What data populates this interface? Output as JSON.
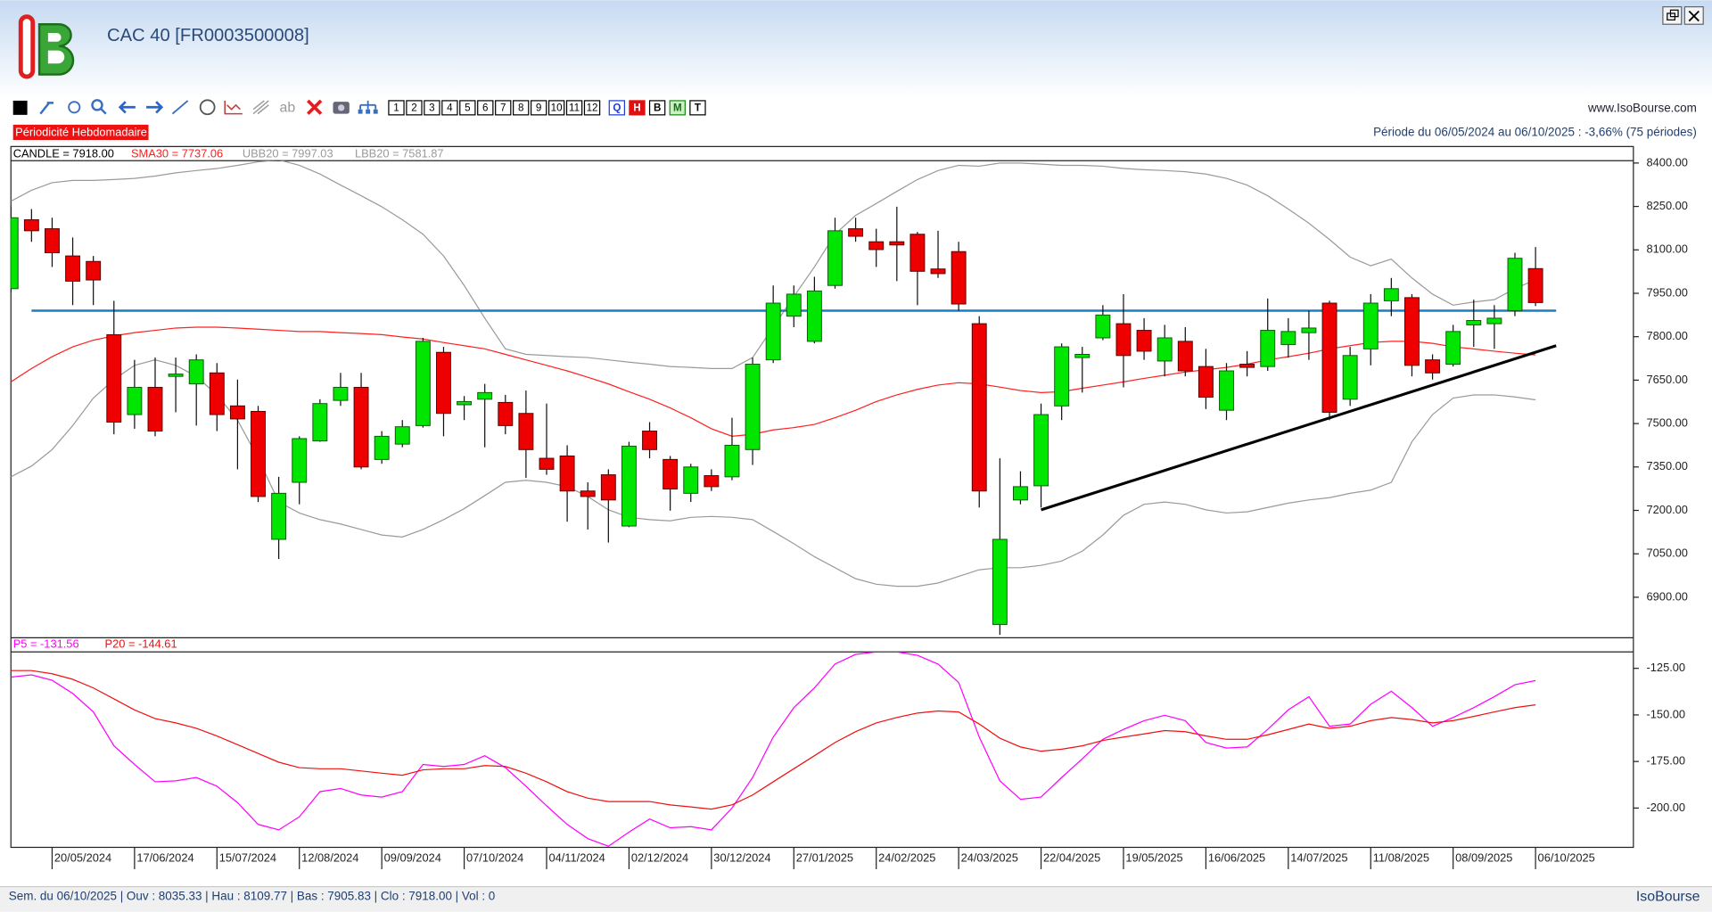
{
  "header": {
    "title": "CAC 40 [FR0003500008]",
    "website": "www.IsoBourse.com",
    "periodicity": "Périodicité Hebdomadaire",
    "period": "Période du 06/05/2024 au 06/10/2025 : -3,66% (75 périodes)",
    "toolbar_numbers": [
      "1",
      "2",
      "3",
      "4",
      "5",
      "6",
      "7",
      "8",
      "9",
      "10",
      "11",
      "12"
    ],
    "toolbar_letters": [
      "Q",
      "H",
      "B",
      "M",
      "T"
    ],
    "toolbar_text": "ab"
  },
  "chart_data": [
    {
      "type": "candlestick",
      "legend_label": "CANDLE = 7918.00",
      "categories": [
        null,
        null,
        "20/05/2024",
        null,
        null,
        null,
        "17/06/2024",
        null,
        null,
        null,
        "15/07/2024",
        null,
        null,
        null,
        "12/08/2024",
        null,
        null,
        null,
        "09/09/2024",
        null,
        null,
        null,
        "07/10/2024",
        null,
        null,
        null,
        "04/11/2024",
        null,
        null,
        null,
        "02/12/2024",
        null,
        null,
        null,
        "30/12/2024",
        null,
        null,
        null,
        "27/01/2025",
        null,
        null,
        null,
        "24/02/2025",
        null,
        null,
        null,
        "24/03/2025",
        null,
        null,
        null,
        "22/04/2025",
        null,
        null,
        null,
        "19/05/2025",
        null,
        null,
        null,
        "16/06/2025",
        null,
        null,
        null,
        "14/07/2025",
        null,
        null,
        null,
        "11/08/2025",
        null,
        null,
        null,
        "08/09/2025",
        null,
        null,
        null,
        "06/10/2025"
      ],
      "open": [
        7966,
        8204,
        8173,
        8079,
        8060,
        7807,
        7531,
        7625,
        7663,
        7637,
        7675,
        7561,
        7542,
        7100,
        7297,
        7440,
        7580,
        7625,
        7376,
        7429,
        7493,
        7746,
        7565,
        7584,
        7573,
        7535,
        7380,
        7388,
        7267,
        7323,
        7146,
        7474,
        7376,
        7259,
        7320,
        7316,
        7410,
        7720,
        7871,
        7784,
        7977,
        8173,
        8128,
        8128,
        8154,
        8034,
        8094,
        7845,
        6806,
        7236,
        7285,
        7561,
        7728,
        7796,
        7845,
        7822,
        7716,
        7784,
        7697,
        7546,
        7705,
        7697,
        7773,
        7814,
        7916,
        7584,
        7758,
        7924,
        7935,
        7720,
        7705,
        7841,
        7845,
        7890,
        8035.33
      ],
      "high": [
        8249,
        8241,
        8211,
        8143,
        8079,
        7924,
        7720,
        7728,
        7728,
        7739,
        7709,
        7652,
        7561,
        7316,
        7456,
        7584,
        7675,
        7675,
        7474,
        7512,
        7796,
        7765,
        7595,
        7637,
        7599,
        7614,
        7569,
        7425,
        7297,
        7342,
        7437,
        7505,
        7388,
        7361,
        7342,
        7520,
        7728,
        7977,
        7977,
        8007,
        8211,
        8211,
        8173,
        8249,
        8162,
        8166,
        8128,
        7871,
        7380,
        7335,
        7569,
        7777,
        7765,
        7909,
        7947,
        7864,
        7841,
        7833,
        7758,
        7709,
        7750,
        7932,
        7864,
        7890,
        7924,
        7765,
        7947,
        8003,
        7947,
        7739,
        7841,
        7928,
        7909,
        8090,
        8109.77
      ],
      "low": [
        7954,
        8128,
        8041,
        7909,
        7909,
        7463,
        7482,
        7456,
        7539,
        7493,
        7474,
        7342,
        7229,
        7032,
        7221,
        7437,
        7561,
        7342,
        7361,
        7418,
        7486,
        7456,
        7512,
        7418,
        7463,
        7312,
        7323,
        7161,
        7134,
        7089,
        7142,
        7380,
        7199,
        7229,
        7267,
        7304,
        7357,
        7709,
        7833,
        7777,
        7966,
        8128,
        8041,
        7992,
        7909,
        8003,
        7890,
        7210,
        6770,
        7221,
        7210,
        7512,
        7607,
        7788,
        7625,
        7720,
        7663,
        7663,
        7550,
        7512,
        7663,
        7682,
        7728,
        7720,
        7512,
        7561,
        7701,
        7871,
        7663,
        7652,
        7697,
        7765,
        7758,
        7871,
        7905.83
      ],
      "close": [
        8211,
        8166,
        8090,
        7992,
        7996,
        7505,
        7625,
        7474,
        7671,
        7720,
        7531,
        7516,
        7248,
        7259,
        7448,
        7569,
        7625,
        7350,
        7456,
        7489,
        7784,
        7535,
        7576,
        7607,
        7493,
        7410,
        7342,
        7267,
        7248,
        7236,
        7422,
        7410,
        7274,
        7350,
        7282,
        7425,
        7705,
        7916,
        7947,
        7958,
        8166,
        8147,
        8101,
        8117,
        8026,
        8018,
        7913,
        7267,
        7100,
        7282,
        7531,
        7765,
        7739,
        7875,
        7735,
        7750,
        7796,
        7682,
        7591,
        7682,
        7694,
        7822,
        7818,
        7830,
        7539,
        7735,
        7916,
        7966,
        7701,
        7675,
        7818,
        7856,
        7864,
        8071,
        7918
      ],
      "up_color": "#00e600",
      "down_color": "#ee0000",
      "series": [
        {
          "name": "SMA30 = 7737.06",
          "color": "#ff2020",
          "values": [
            7644,
            7690,
            7731,
            7765,
            7788,
            7803,
            7814,
            7822,
            7830,
            7833,
            7833,
            7830,
            7826,
            7822,
            7818,
            7818,
            7814,
            7811,
            7807,
            7799,
            7792,
            7780,
            7769,
            7758,
            7739,
            7720,
            7701,
            7682,
            7660,
            7637,
            7610,
            7584,
            7554,
            7520,
            7482,
            7456,
            7463,
            7478,
            7486,
            7497,
            7520,
            7546,
            7576,
            7599,
            7618,
            7633,
            7641,
            7637,
            7626,
            7614,
            7607,
            7610,
            7622,
            7633,
            7644,
            7656,
            7667,
            7678,
            7686,
            7694,
            7705,
            7720,
            7731,
            7743,
            7758,
            7769,
            7780,
            7784,
            7784,
            7777,
            7765,
            7758,
            7750,
            7743,
            7737.06
          ]
        },
        {
          "name": "UBB20 = 7997.03",
          "color": "#9a9a9a",
          "values": [
            8268,
            8306,
            8332,
            8340,
            8340,
            8343,
            8347,
            8355,
            8366,
            8374,
            8381,
            8392,
            8404,
            8411,
            8392,
            8362,
            8324,
            8287,
            8249,
            8204,
            8154,
            8079,
            7977,
            7864,
            7758,
            7739,
            7735,
            7731,
            7728,
            7720,
            7712,
            7705,
            7697,
            7694,
            7690,
            7690,
            7728,
            7833,
            7939,
            8041,
            8154,
            8219,
            8260,
            8302,
            8343,
            8374,
            8392,
            8389,
            8400,
            8400,
            8396,
            8392,
            8392,
            8389,
            8381,
            8377,
            8374,
            8370,
            8362,
            8347,
            8324,
            8287,
            8241,
            8192,
            8136,
            8075,
            8045,
            8068,
            8003,
            7947,
            7909,
            7920,
            7928,
            7966,
            7997.03
          ]
        },
        {
          "name": "LBB20 = 7581.87",
          "color": "#9a9a9a",
          "values": [
            7316,
            7353,
            7410,
            7493,
            7588,
            7652,
            7701,
            7720,
            7701,
            7663,
            7599,
            7512,
            7380,
            7229,
            7191,
            7168,
            7153,
            7134,
            7115,
            7108,
            7134,
            7168,
            7206,
            7251,
            7297,
            7304,
            7297,
            7282,
            7248,
            7202,
            7176,
            7168,
            7164,
            7176,
            7179,
            7176,
            7168,
            7127,
            7085,
            7040,
            7002,
            6964,
            6945,
            6938,
            6938,
            6949,
            6972,
            6995,
            7002,
            7002,
            7010,
            7025,
            7059,
            7115,
            7183,
            7221,
            7229,
            7221,
            7202,
            7191,
            7195,
            7210,
            7225,
            7236,
            7244,
            7259,
            7270,
            7297,
            7437,
            7531,
            7588,
            7599,
            7599,
            7592,
            7581.87
          ]
        }
      ],
      "horizontal_line": {
        "value": 7890,
        "color": "#1a7fc0"
      },
      "trendline": {
        "x": [
          50,
          75
        ],
        "values": [
          7202,
          7769
        ],
        "color": "#000000"
      },
      "ylim": [
        6760,
        8408
      ],
      "yticks": [
        {
          "value": 6900,
          "label": "6900.00"
        },
        {
          "value": 7050,
          "label": "7050.00"
        },
        {
          "value": 7200,
          "label": "7200.00"
        },
        {
          "value": 7350,
          "label": "7350.00"
        },
        {
          "value": 7500,
          "label": "7500.00"
        },
        {
          "value": 7650,
          "label": "7650.00"
        },
        {
          "value": 7800,
          "label": "7800.00"
        },
        {
          "value": 7950,
          "label": "7950.00"
        },
        {
          "value": 8100,
          "label": "8100.00"
        },
        {
          "value": 8250,
          "label": "8250.00"
        },
        {
          "value": 8400,
          "label": "8400.00"
        }
      ]
    },
    {
      "type": "line",
      "series": [
        {
          "name": "P5 = -131.56",
          "color": "#ff00ff",
          "values": [
            -129.7,
            -128.5,
            -131.4,
            -138.5,
            -148.4,
            -166.6,
            -176.6,
            -185.9,
            -185.4,
            -183.6,
            -188.3,
            -197.1,
            -208.8,
            -211.7,
            -204.7,
            -191.2,
            -189.5,
            -193.0,
            -194.1,
            -191.2,
            -176.6,
            -177.7,
            -176.6,
            -171.9,
            -178.3,
            -188.3,
            -198.8,
            -208.8,
            -216.4,
            -220.5,
            -212.9,
            -205.9,
            -210.6,
            -210.0,
            -211.7,
            -200.0,
            -183.6,
            -161.9,
            -146.1,
            -135.5,
            -122.7,
            -117.5,
            -116.2,
            -116.2,
            -118.0,
            -122.7,
            -132.6,
            -161.9,
            -185.4,
            -195.3,
            -194.1,
            -183.6,
            -173.6,
            -163.1,
            -157.8,
            -153.1,
            -150.2,
            -153.1,
            -164.8,
            -167.8,
            -167.2,
            -157.8,
            -147.3,
            -140.2,
            -156.1,
            -154.9,
            -144.3,
            -137.3,
            -146.1,
            -156.1,
            -151.4,
            -146.1,
            -140.2,
            -133.8,
            -131.56
          ]
        },
        {
          "name": "P20 = -144.61",
          "color": "#ee1111",
          "values": [
            -126.2,
            -126.2,
            -127.9,
            -130.9,
            -135.5,
            -141.4,
            -147.3,
            -152.0,
            -154.3,
            -157.2,
            -161.3,
            -166.0,
            -170.7,
            -175.4,
            -178.3,
            -178.9,
            -178.9,
            -180.1,
            -181.3,
            -182.4,
            -179.5,
            -178.9,
            -178.9,
            -177.2,
            -177.7,
            -181.3,
            -185.9,
            -191.2,
            -194.7,
            -196.5,
            -196.5,
            -196.5,
            -198.3,
            -199.4,
            -200.6,
            -198.3,
            -193.0,
            -185.9,
            -178.9,
            -171.9,
            -164.8,
            -159.0,
            -154.3,
            -151.4,
            -149.0,
            -147.9,
            -148.4,
            -154.9,
            -162.5,
            -167.2,
            -169.5,
            -168.4,
            -166.6,
            -163.7,
            -161.9,
            -160.2,
            -158.4,
            -159.0,
            -161.3,
            -163.1,
            -163.1,
            -160.7,
            -157.8,
            -154.9,
            -157.2,
            -156.1,
            -153.1,
            -151.4,
            -152.5,
            -154.3,
            -153.1,
            -150.8,
            -148.4,
            -146.1,
            -144.61
          ]
        }
      ],
      "ylim": [
        -221.1,
        -116.2
      ],
      "yticks": [
        {
          "value": -125,
          "label": "-125.00"
        },
        {
          "value": -150,
          "label": "-150.00"
        },
        {
          "value": -175,
          "label": "-175.00"
        },
        {
          "value": -200,
          "label": "-200.00"
        }
      ]
    }
  ],
  "status_bar": {
    "text": "Sem. du 06/10/2025 | Ouv : 8035.33 | Hau : 8109.77 | Bas : 7905.83 | Clo : 7918.00 | Vol : 0",
    "brand": "IsoBourse"
  }
}
